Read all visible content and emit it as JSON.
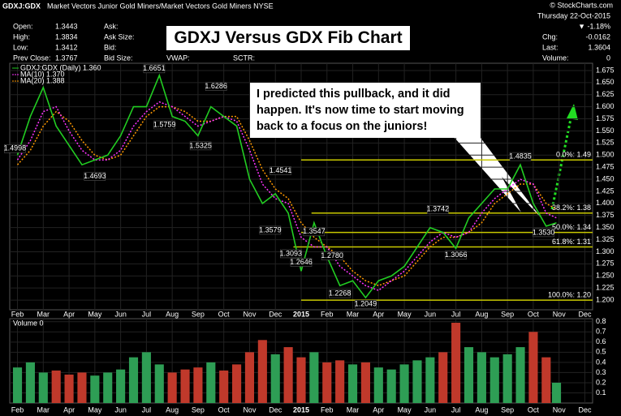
{
  "header": {
    "symbol": "GDXJ:GDX",
    "description": "Market Vectors Junior Gold Miners/Market Vectors Gold Miners NYSE",
    "watermark": "© StockCharts.com",
    "date": "Thursday 22-Oct-2015",
    "fields": [
      {
        "label": "Open:",
        "value": "1.3443"
      },
      {
        "label": "High:",
        "value": "1.3834"
      },
      {
        "label": "Low:",
        "value": "1.3412"
      },
      {
        "label": "Prev Close:",
        "value": "1.3767"
      },
      {
        "label": "Ask:",
        "value": ""
      },
      {
        "label": "Ask Size:",
        "value": ""
      },
      {
        "label": "Bid:",
        "value": ""
      },
      {
        "label": "Bid Size:",
        "value": ""
      }
    ],
    "extra_fields": [
      "VWAP:",
      "SCTR:"
    ],
    "change_pct": "▼ -1.18%",
    "quote": [
      {
        "label": "Chg:",
        "value": "-0.0162"
      },
      {
        "label": "Last:",
        "value": "1.3604"
      },
      {
        "label": "Volume:",
        "value": "0"
      }
    ]
  },
  "chart_data": {
    "type": "line",
    "title": "GDXJ Versus GDX Fib Chart",
    "annotation": [
      "I predicted this pullback, and it did",
      "happen.  It's now time to start moving",
      "back to a focus on the juniors!"
    ],
    "x": [
      0,
      0.5,
      1,
      1.5,
      2,
      2.5,
      3,
      3.5,
      4,
      4.5,
      5,
      5.5,
      6,
      6.5,
      7,
      7.5,
      8,
      8.5,
      9,
      9.5,
      10,
      10.5,
      11,
      11.5,
      12,
      12.5,
      13,
      13.5,
      14,
      14.5,
      15,
      15.5,
      16,
      16.5,
      17,
      17.5,
      18,
      18.5,
      19,
      19.5,
      20,
      20.5,
      20.9
    ],
    "xlim": [
      -0.3,
      22.3
    ],
    "xticks": [
      {
        "value": 0,
        "label": "Feb"
      },
      {
        "value": 1,
        "label": "Mar"
      },
      {
        "value": 2,
        "label": "Apr"
      },
      {
        "value": 3,
        "label": "May"
      },
      {
        "value": 4,
        "label": "Jun"
      },
      {
        "value": 5,
        "label": "Jul"
      },
      {
        "value": 6,
        "label": "Aug"
      },
      {
        "value": 7,
        "label": "Sep"
      },
      {
        "value": 8,
        "label": "Oct"
      },
      {
        "value": 9,
        "label": "Nov"
      },
      {
        "value": 10,
        "label": "Dec"
      },
      {
        "value": 11,
        "label": "2015"
      },
      {
        "value": 12,
        "label": "Feb"
      },
      {
        "value": 13,
        "label": "Mar"
      },
      {
        "value": 14,
        "label": "Apr"
      },
      {
        "value": 15,
        "label": "May"
      },
      {
        "value": 16,
        "label": "Jun"
      },
      {
        "value": 17,
        "label": "Jul"
      },
      {
        "value": 18,
        "label": "Aug"
      },
      {
        "value": 19,
        "label": "Sep"
      },
      {
        "value": 20,
        "label": "Oct"
      },
      {
        "value": 21,
        "label": "Nov"
      },
      {
        "value": 22,
        "label": "Dec"
      }
    ],
    "ylim": [
      1.18,
      1.69
    ],
    "yticks": [
      {
        "value": 1.2,
        "label": "1.200"
      },
      {
        "value": 1.225,
        "label": "1.225"
      },
      {
        "value": 1.25,
        "label": "1.250"
      },
      {
        "value": 1.275,
        "label": "1.275"
      },
      {
        "value": 1.3,
        "label": "1.300"
      },
      {
        "value": 1.325,
        "label": "1.325"
      },
      {
        "value": 1.35,
        "label": "1.350"
      },
      {
        "value": 1.375,
        "label": "1.375"
      },
      {
        "value": 1.4,
        "label": "1.400"
      },
      {
        "value": 1.425,
        "label": "1.425"
      },
      {
        "value": 1.45,
        "label": "1.450"
      },
      {
        "value": 1.475,
        "label": "1.475"
      },
      {
        "value": 1.5,
        "label": "1.500"
      },
      {
        "value": 1.525,
        "label": "1.525"
      },
      {
        "value": 1.55,
        "label": "1.550"
      },
      {
        "value": 1.575,
        "label": "1.575"
      },
      {
        "value": 1.6,
        "label": "1.600"
      },
      {
        "value": 1.625,
        "label": "1.625"
      },
      {
        "value": 1.65,
        "label": "1.650"
      },
      {
        "value": 1.675,
        "label": "1.675"
      }
    ],
    "grid": true,
    "series": [
      {
        "name": "GDXJ:GDX (Daily) 1.360",
        "color": "#22cc22",
        "values": [
          1.5,
          1.58,
          1.64,
          1.56,
          1.52,
          1.48,
          1.49,
          1.5,
          1.54,
          1.6,
          1.6,
          1.665,
          1.58,
          1.57,
          1.54,
          1.6,
          1.58,
          1.56,
          1.45,
          1.4,
          1.42,
          1.38,
          1.26,
          1.36,
          1.29,
          1.23,
          1.24,
          1.205,
          1.24,
          1.25,
          1.27,
          1.31,
          1.35,
          1.34,
          1.307,
          1.37,
          1.4,
          1.43,
          1.43,
          1.48,
          1.4,
          1.353,
          1.36
        ]
      },
      {
        "name": "MA(10) 1.370",
        "color": "#ff33ff",
        "values": [
          1.49,
          1.53,
          1.59,
          1.6,
          1.55,
          1.51,
          1.49,
          1.49,
          1.51,
          1.56,
          1.59,
          1.61,
          1.6,
          1.58,
          1.56,
          1.57,
          1.58,
          1.57,
          1.51,
          1.44,
          1.41,
          1.4,
          1.33,
          1.31,
          1.31,
          1.27,
          1.25,
          1.23,
          1.22,
          1.24,
          1.26,
          1.29,
          1.32,
          1.34,
          1.33,
          1.34,
          1.38,
          1.41,
          1.43,
          1.45,
          1.44,
          1.38,
          1.37
        ]
      },
      {
        "name": "MA(20) 1.388",
        "color": "#ff9900",
        "values": [
          1.48,
          1.51,
          1.56,
          1.59,
          1.57,
          1.53,
          1.5,
          1.49,
          1.5,
          1.54,
          1.58,
          1.6,
          1.6,
          1.59,
          1.57,
          1.57,
          1.58,
          1.58,
          1.53,
          1.47,
          1.43,
          1.41,
          1.36,
          1.33,
          1.31,
          1.29,
          1.26,
          1.24,
          1.23,
          1.24,
          1.25,
          1.28,
          1.31,
          1.33,
          1.33,
          1.34,
          1.36,
          1.4,
          1.42,
          1.44,
          1.44,
          1.4,
          1.388
        ]
      }
    ],
    "point_labels": [
      {
        "x": -0.1,
        "value": 1.4998,
        "label": "1.4998"
      },
      {
        "x": 5.3,
        "value": 1.6651,
        "label": "1.6651"
      },
      {
        "x": 7.7,
        "value": 1.6286,
        "label": "1.6286"
      },
      {
        "x": 5.7,
        "value": 1.5759,
        "label": "1.5759"
      },
      {
        "x": 7.1,
        "value": 1.5325,
        "label": "1.5325"
      },
      {
        "x": 3.0,
        "value": 1.4693,
        "label": "1.4693"
      },
      {
        "x": 10.2,
        "value": 1.4541,
        "label": "1.4541"
      },
      {
        "x": 9.8,
        "value": 1.3579,
        "label": "1.3579"
      },
      {
        "x": 11.5,
        "value": 1.3547,
        "label": "1.3547"
      },
      {
        "x": 10.6,
        "value": 1.3093,
        "label": "1.3093"
      },
      {
        "x": 11.0,
        "value": 1.2646,
        "label": "1.2646"
      },
      {
        "x": 12.2,
        "value": 1.278,
        "label": "1.2780"
      },
      {
        "x": 12.5,
        "value": 1.2268,
        "label": "1.2268"
      },
      {
        "x": 13.5,
        "value": 1.2049,
        "label": "1.2049"
      },
      {
        "x": 16.3,
        "value": 1.3742,
        "label": "1.3742"
      },
      {
        "x": 17.0,
        "value": 1.3066,
        "label": "1.3066"
      },
      {
        "x": 19.5,
        "value": 1.4835,
        "label": "1.4835"
      },
      {
        "x": 20.4,
        "value": 1.353,
        "label": "1.3530"
      }
    ],
    "fib_color": "#c8c800",
    "fib_levels": [
      {
        "value": 1.49,
        "label": "0.0%: 1.49",
        "from": 11.0
      },
      {
        "value": 1.38,
        "label": "38.2%: 1.38",
        "from": 11.4
      },
      {
        "value": 1.34,
        "label": "50.0%: 1.34",
        "from": 11.0
      },
      {
        "value": 1.31,
        "label": "61.8%: 1.31",
        "from": 10.7
      },
      {
        "value": 1.2,
        "label": "100.0%: 1.20",
        "from": 11.0
      }
    ],
    "volume": {
      "name": "Volume 0",
      "up_color": "#2e9e55",
      "down_color": "#c0392b",
      "ylim": [
        0,
        0.83
      ],
      "yticks": [
        0.1,
        0.2,
        0.3,
        0.4,
        0.5,
        0.6,
        0.7,
        0.8
      ],
      "values": [
        0.35,
        0.4,
        0.3,
        0.32,
        0.28,
        0.3,
        0.27,
        0.3,
        0.33,
        0.45,
        0.5,
        0.38,
        0.3,
        0.33,
        0.35,
        0.4,
        0.32,
        0.38,
        0.5,
        0.62,
        0.48,
        0.55,
        0.45,
        0.5,
        0.4,
        0.42,
        0.38,
        0.4,
        0.35,
        0.33,
        0.38,
        0.42,
        0.45,
        0.5,
        0.79,
        0.55,
        0.5,
        0.45,
        0.48,
        0.55,
        0.7,
        0.45,
        0.2
      ]
    }
  }
}
